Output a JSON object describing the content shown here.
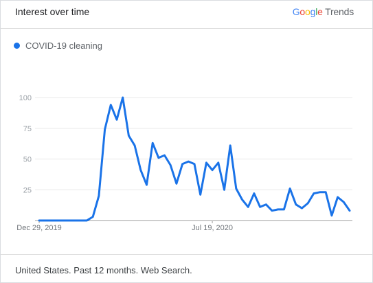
{
  "header": {
    "title": "Interest over time",
    "brand": {
      "letters": [
        {
          "ch": "G",
          "color": "#4285F4"
        },
        {
          "ch": "o",
          "color": "#EA4335"
        },
        {
          "ch": "o",
          "color": "#FBBC05"
        },
        {
          "ch": "g",
          "color": "#4285F4"
        },
        {
          "ch": "l",
          "color": "#34A853"
        },
        {
          "ch": "e",
          "color": "#EA4335"
        }
      ],
      "suffix": "Trends"
    }
  },
  "footer": {
    "text": "United States. Past 12 months. Web Search."
  },
  "chart_data": {
    "type": "line",
    "title": "",
    "xlabel": "",
    "ylabel": "",
    "ylim": [
      0,
      100
    ],
    "yticks": [
      25,
      50,
      75,
      100
    ],
    "x_tick_labels": [
      {
        "label": "Dec 29, 2019",
        "index": 0
      },
      {
        "label": "Jul 19, 2020",
        "index": 29
      }
    ],
    "grid": true,
    "legend_position": "top-left",
    "series": [
      {
        "name": "COVID-19 cleaning",
        "color": "#1a73e8",
        "values": [
          0,
          0,
          0,
          0,
          0,
          0,
          0,
          0,
          0,
          3,
          20,
          74,
          94,
          82,
          100,
          69,
          61,
          41,
          29,
          63,
          51,
          53,
          45,
          30,
          46,
          48,
          46,
          21,
          47,
          41,
          47,
          25,
          61,
          26,
          17,
          11,
          22,
          11,
          13,
          8,
          9,
          9,
          26,
          13,
          10,
          14,
          22,
          23,
          23,
          4,
          19,
          15,
          8
        ]
      }
    ]
  }
}
